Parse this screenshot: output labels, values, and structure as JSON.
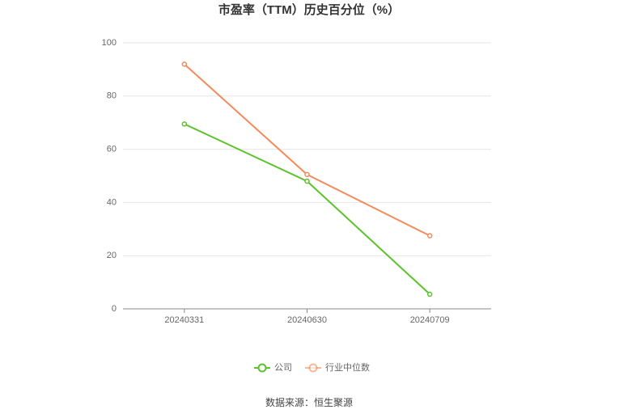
{
  "chart_data": {
    "type": "line",
    "title": "市盈率（TTM）历史百分位（%）",
    "categories": [
      "20240331",
      "20240630",
      "20240709"
    ],
    "series": [
      {
        "name": "公司",
        "color": "#5cc22c",
        "values": [
          69.5,
          48,
          5.5
        ]
      },
      {
        "name": "行业中位数",
        "color": "#f58a5c",
        "values": [
          92,
          50.5,
          27.5
        ]
      }
    ],
    "ylim": [
      0,
      100
    ],
    "yticks": [
      0,
      20,
      40,
      60,
      80,
      100
    ],
    "grid": true,
    "source": "数据来源：恒生聚源"
  }
}
